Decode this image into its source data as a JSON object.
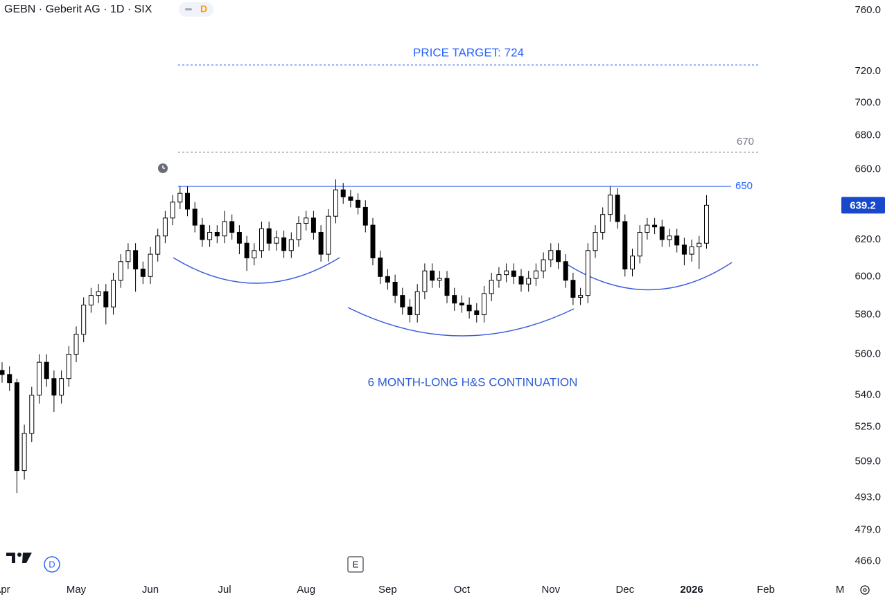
{
  "chart_data": {
    "type": "candlestick",
    "title": "GEBN · Geberit AG · 1D · SIX",
    "interval_badge": "D",
    "left_badge": "D",
    "event_marker": "E",
    "annotation": "6 MONTH-LONG H&S CONTINUATION",
    "log_scale": true,
    "grid": false,
    "up_color": "#ffffff",
    "down_color": "#000000",
    "border_color": "#000000",
    "ylim": [
      457,
      767
    ],
    "yticks": [
      {
        "value": 760,
        "label": "760.0"
      },
      {
        "value": 720,
        "label": "720.0"
      },
      {
        "value": 700,
        "label": "700.0"
      },
      {
        "value": 680,
        "label": "680.0"
      },
      {
        "value": 660,
        "label": "660.0"
      },
      {
        "value": 620,
        "label": "620.0"
      },
      {
        "value": 600,
        "label": "600.0"
      },
      {
        "value": 580,
        "label": "580.0"
      },
      {
        "value": 560,
        "label": "560.0"
      },
      {
        "value": 540,
        "label": "540.0"
      },
      {
        "value": 525,
        "label": "525.0"
      },
      {
        "value": 509,
        "label": "509.0"
      },
      {
        "value": 493,
        "label": "493.0"
      },
      {
        "value": 479,
        "label": "479.0"
      },
      {
        "value": 466,
        "label": "466.0"
      }
    ],
    "levels": [
      {
        "value": 724,
        "label": "PRICE TARGET: 724",
        "color": "#2962ff",
        "style": "dashed"
      },
      {
        "value": 670,
        "label": "670",
        "color": "#787b86",
        "style": "dashed"
      },
      {
        "value": 650,
        "label": "650",
        "color": "#2962ff",
        "style": "solid"
      }
    ],
    "last_price_color": "#1848cc",
    "categories": [
      "Apr",
      null,
      null,
      null,
      null,
      null,
      null,
      null,
      null,
      null,
      "May",
      null,
      null,
      null,
      null,
      null,
      null,
      null,
      null,
      null,
      "Jun",
      null,
      null,
      null,
      null,
      null,
      null,
      null,
      null,
      null,
      "Jul",
      null,
      null,
      null,
      null,
      null,
      null,
      null,
      null,
      null,
      null,
      "Aug",
      null,
      null,
      null,
      null,
      null,
      null,
      null,
      null,
      null,
      null,
      "Sep",
      null,
      null,
      null,
      null,
      null,
      null,
      null,
      null,
      null,
      "Oct",
      null,
      null,
      null,
      null,
      null,
      null,
      null,
      null,
      null,
      null,
      null,
      "Nov",
      null,
      null,
      null,
      null,
      null,
      null,
      null,
      null,
      null,
      "Dec",
      null,
      null,
      null,
      null,
      null,
      null,
      null,
      null,
      "2026",
      null,
      null,
      null,
      null,
      null,
      null,
      null,
      null,
      null,
      "Feb",
      null,
      null,
      null,
      null,
      null,
      null,
      null,
      null,
      null,
      "M"
    ],
    "open": [
      552,
      550,
      546,
      505,
      522,
      540,
      556,
      548,
      540,
      548,
      560,
      570,
      585,
      590,
      592,
      584,
      598,
      608,
      614,
      604,
      600,
      612,
      622,
      632,
      641,
      646,
      637,
      628,
      620,
      624,
      622,
      630,
      624,
      618,
      610,
      614,
      626,
      618,
      621,
      614,
      620,
      629,
      632,
      624,
      612,
      633,
      648,
      644,
      642,
      638,
      628,
      610,
      600,
      597,
      590,
      584,
      580,
      592,
      603,
      598,
      599,
      590,
      586,
      585,
      582,
      580,
      591,
      598,
      601,
      603,
      600,
      596,
      599,
      603,
      609,
      614,
      608,
      598,
      589,
      590,
      614,
      624,
      634,
      645,
      630,
      604,
      611,
      624,
      628,
      627,
      620,
      622,
      617,
      612,
      616,
      618,
      null,
      null,
      null,
      null,
      null,
      null,
      null,
      null,
      null,
      null,
      null,
      null,
      null,
      null,
      null,
      null,
      null,
      null
    ],
    "high": [
      556,
      554,
      548,
      526,
      544,
      560,
      560,
      552,
      552,
      564,
      574,
      589,
      594,
      596,
      596,
      602,
      612,
      618,
      618,
      608,
      616,
      626,
      636,
      645,
      650,
      650,
      641,
      632,
      628,
      628,
      636,
      634,
      628,
      622,
      618,
      630,
      630,
      625,
      625,
      624,
      633,
      636,
      636,
      628,
      637,
      654,
      652,
      648,
      646,
      642,
      632,
      614,
      604,
      601,
      594,
      588,
      596,
      607,
      607,
      603,
      603,
      594,
      590,
      589,
      586,
      595,
      602,
      605,
      607,
      607,
      604,
      603,
      607,
      613,
      618,
      618,
      612,
      602,
      594,
      618,
      628,
      638,
      650,
      649,
      634,
      615,
      628,
      632,
      632,
      631,
      626,
      626,
      621,
      620,
      622,
      645,
      null,
      null,
      null,
      null,
      null,
      null,
      null,
      null,
      null,
      null,
      null,
      null,
      null,
      null,
      null,
      null,
      null,
      null
    ],
    "low": [
      546,
      542,
      495,
      501,
      518,
      536,
      544,
      532,
      536,
      544,
      556,
      566,
      581,
      586,
      575,
      580,
      594,
      604,
      592,
      596,
      596,
      608,
      618,
      628,
      637,
      633,
      624,
      616,
      616,
      618,
      618,
      620,
      612,
      603,
      606,
      610,
      614,
      614,
      610,
      610,
      616,
      625,
      620,
      608,
      608,
      629,
      640,
      638,
      634,
      624,
      606,
      596,
      593,
      586,
      580,
      576,
      576,
      588,
      594,
      594,
      586,
      582,
      581,
      578,
      576,
      576,
      587,
      594,
      597,
      596,
      592,
      592,
      595,
      599,
      605,
      604,
      594,
      585,
      585,
      586,
      610,
      620,
      630,
      626,
      600,
      600,
      607,
      620,
      623,
      616,
      616,
      613,
      606,
      608,
      604,
      615,
      null,
      null,
      null,
      null,
      null,
      null,
      null,
      null,
      null,
      null,
      null,
      null,
      null,
      null,
      null,
      null,
      null,
      null
    ],
    "close": [
      550,
      546,
      505,
      522,
      540,
      556,
      548,
      540,
      548,
      560,
      570,
      585,
      590,
      592,
      584,
      598,
      608,
      614,
      604,
      600,
      612,
      622,
      632,
      641,
      646,
      637,
      628,
      620,
      624,
      622,
      630,
      624,
      618,
      610,
      614,
      626,
      618,
      621,
      614,
      620,
      629,
      632,
      624,
      612,
      633,
      648,
      644,
      642,
      638,
      628,
      610,
      600,
      597,
      590,
      584,
      580,
      592,
      603,
      598,
      599,
      590,
      586,
      585,
      582,
      580,
      591,
      598,
      601,
      603,
      600,
      596,
      599,
      603,
      609,
      614,
      608,
      598,
      589,
      590,
      614,
      624,
      634,
      645,
      630,
      604,
      611,
      624,
      628,
      627,
      620,
      622,
      617,
      612,
      616,
      618,
      639.2,
      null,
      null,
      null,
      null,
      null,
      null,
      null,
      null,
      null,
      null,
      null,
      null,
      null,
      null,
      null,
      null,
      null,
      null
    ]
  }
}
